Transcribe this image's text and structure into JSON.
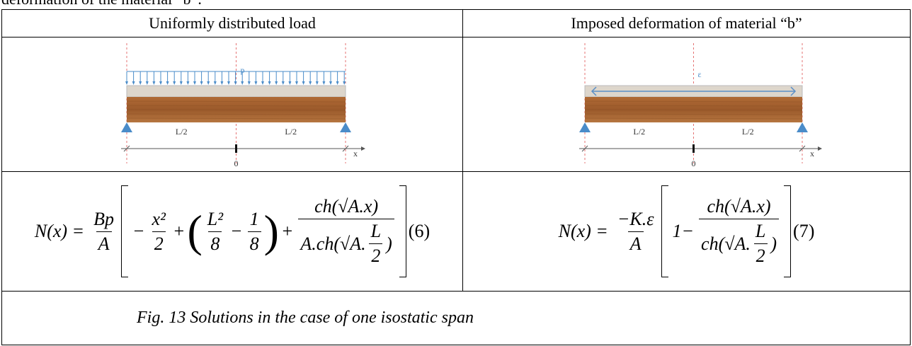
{
  "intro_text": "deformation of the material “b”.",
  "table": {
    "headers": [
      "Uniformly distributed load",
      "Imposed deformation of material “b”"
    ],
    "figures": [
      {
        "load_label": "p",
        "span_labels": [
          "L/2",
          "L/2"
        ],
        "origin_label": "0",
        "axis_label": "x"
      },
      {
        "load_label": "ε",
        "span_labels": [
          "L/2",
          "L/2"
        ],
        "origin_label": "0",
        "axis_label": "x"
      }
    ],
    "equations": [
      {
        "lhs": "N(x) =",
        "factor": {
          "num": "Bp",
          "den": "A"
        },
        "terms": [
          "−",
          {
            "num": "x²",
            "den": "2"
          },
          "+",
          "(",
          {
            "num": "L²",
            "den": "8"
          },
          "−",
          {
            "num": "1",
            "den": "8"
          },
          ")",
          "+",
          {
            "num": "ch(√A.x)",
            "den": [
              "A.ch(√A.",
              {
                "num": "L",
                "den": "2"
              },
              ")"
            ]
          }
        ],
        "number": "(6)"
      },
      {
        "lhs": "N(x) =",
        "factor": {
          "num": "−K.ε",
          "den": "A"
        },
        "terms": [
          "1−",
          {
            "num": "ch(√A.x)",
            "den": [
              "ch(√A.",
              {
                "num": "L",
                "den": "2"
              },
              ")"
            ]
          }
        ],
        "number": "(7)"
      }
    ],
    "caption": "Fig. 13 Solutions in the case of one isostatic span"
  }
}
